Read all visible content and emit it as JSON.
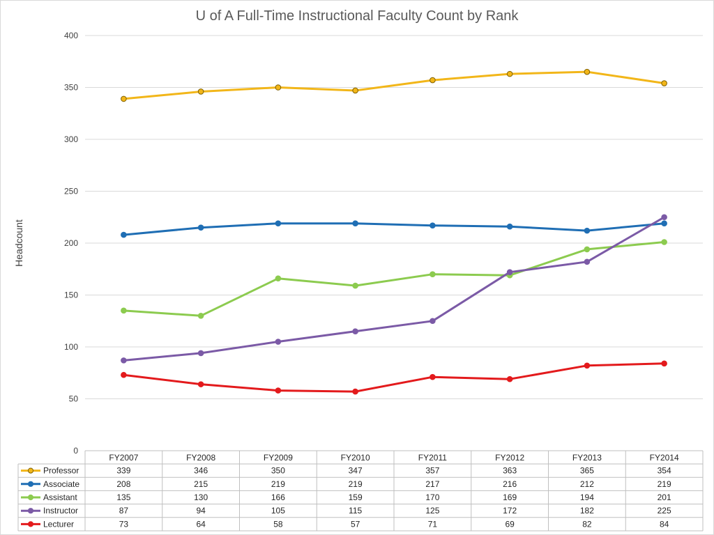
{
  "chart_data": {
    "type": "line",
    "title": "U of A Full-Time Instructional Faculty Count by Rank",
    "ylabel": "Headcount",
    "xlabel": "",
    "ylim": [
      0,
      400
    ],
    "yticks": [
      0,
      50,
      100,
      150,
      200,
      250,
      300,
      350,
      400
    ],
    "grid": true,
    "legend": "data-table-below",
    "categories": [
      "FY2007",
      "FY2008",
      "FY2009",
      "FY2010",
      "FY2011",
      "FY2012",
      "FY2013",
      "FY2014"
    ],
    "series": [
      {
        "name": "Professor",
        "color": "#F2B619",
        "marker_edge": "#7f6000",
        "values": [
          339,
          346,
          350,
          347,
          357,
          363,
          365,
          354
        ]
      },
      {
        "name": "Associate",
        "color": "#1F6EB4",
        "marker_edge": "#1F6EB4",
        "values": [
          208,
          215,
          219,
          219,
          217,
          216,
          212,
          219
        ]
      },
      {
        "name": "Assistant",
        "color": "#8CCB4F",
        "marker_edge": "#8CCB4F",
        "values": [
          135,
          130,
          166,
          159,
          170,
          169,
          194,
          201
        ]
      },
      {
        "name": "Instructor",
        "color": "#7B5AA6",
        "marker_edge": "#7B5AA6",
        "values": [
          87,
          94,
          105,
          115,
          125,
          172,
          182,
          225
        ]
      },
      {
        "name": "Lecturer",
        "color": "#E31A1C",
        "marker_edge": "#E31A1C",
        "values": [
          73,
          64,
          58,
          57,
          71,
          69,
          82,
          84
        ]
      }
    ]
  }
}
